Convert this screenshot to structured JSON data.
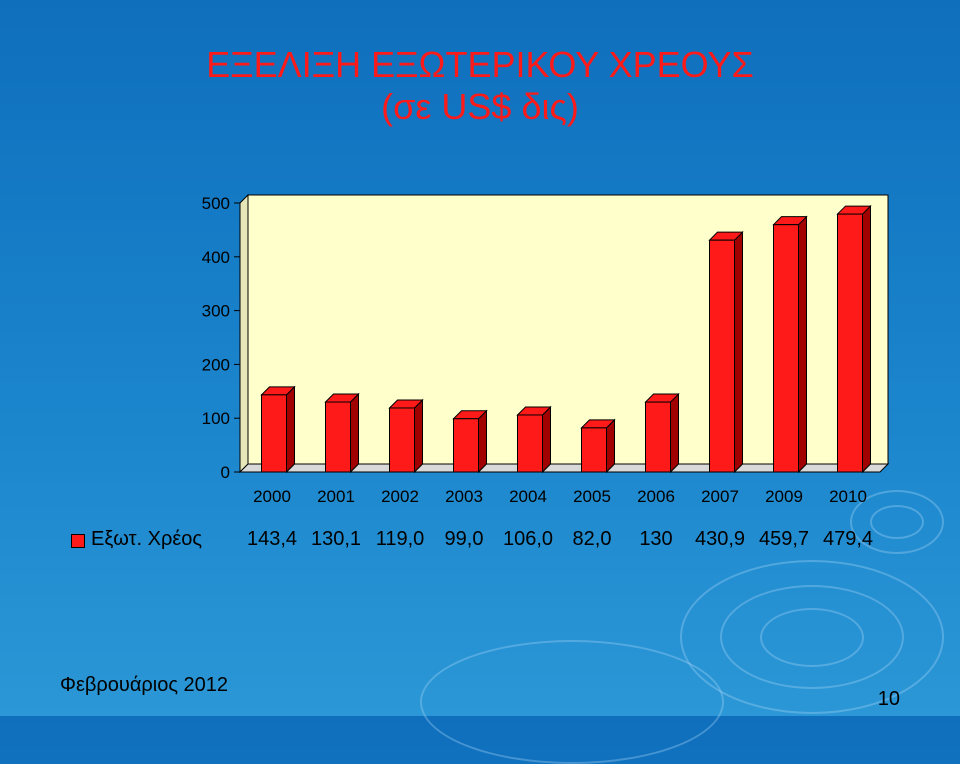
{
  "title_line1": "ΕΞΕΛΙΞΗ ΕΞΩΤΕΡΙΚΟΥ ΧΡΕΟΥΣ",
  "title_line2": "(σε US$ δις)",
  "footer_date": "Φεβρουάριος 2012",
  "page_number": "10",
  "colors": {
    "bar_front": "#ff1a1a",
    "bar_side": "#a00000",
    "plot_bg": "#ffffcc"
  },
  "chart_data": {
    "type": "bar",
    "title": "ΕΞΕΛΙΞΗ ΕΞΩΤΕΡΙΚΟΥ ΧΡΕΟΥΣ (σε US$ δις)",
    "categories": [
      "2000",
      "2001",
      "2002",
      "2003",
      "2004",
      "2005",
      "2006",
      "2007",
      "2009",
      "2010"
    ],
    "series": [
      {
        "name": "Εξωτ. Χρέος",
        "values": [
          143.4,
          130.1,
          119.0,
          99.0,
          106.0,
          82.0,
          130,
          430.9,
          459.7,
          479.4
        ]
      }
    ],
    "value_labels": [
      "143,4",
      "130,1",
      "119,0",
      "99,0",
      "106,0",
      "82,0",
      "130",
      "430,9",
      "459,7",
      "479,4"
    ],
    "yticks": [
      "500",
      "400",
      "300",
      "200",
      "100",
      "0"
    ],
    "ylim": [
      0,
      500
    ],
    "xlabel": "",
    "ylabel": "",
    "legend": "data-table"
  }
}
